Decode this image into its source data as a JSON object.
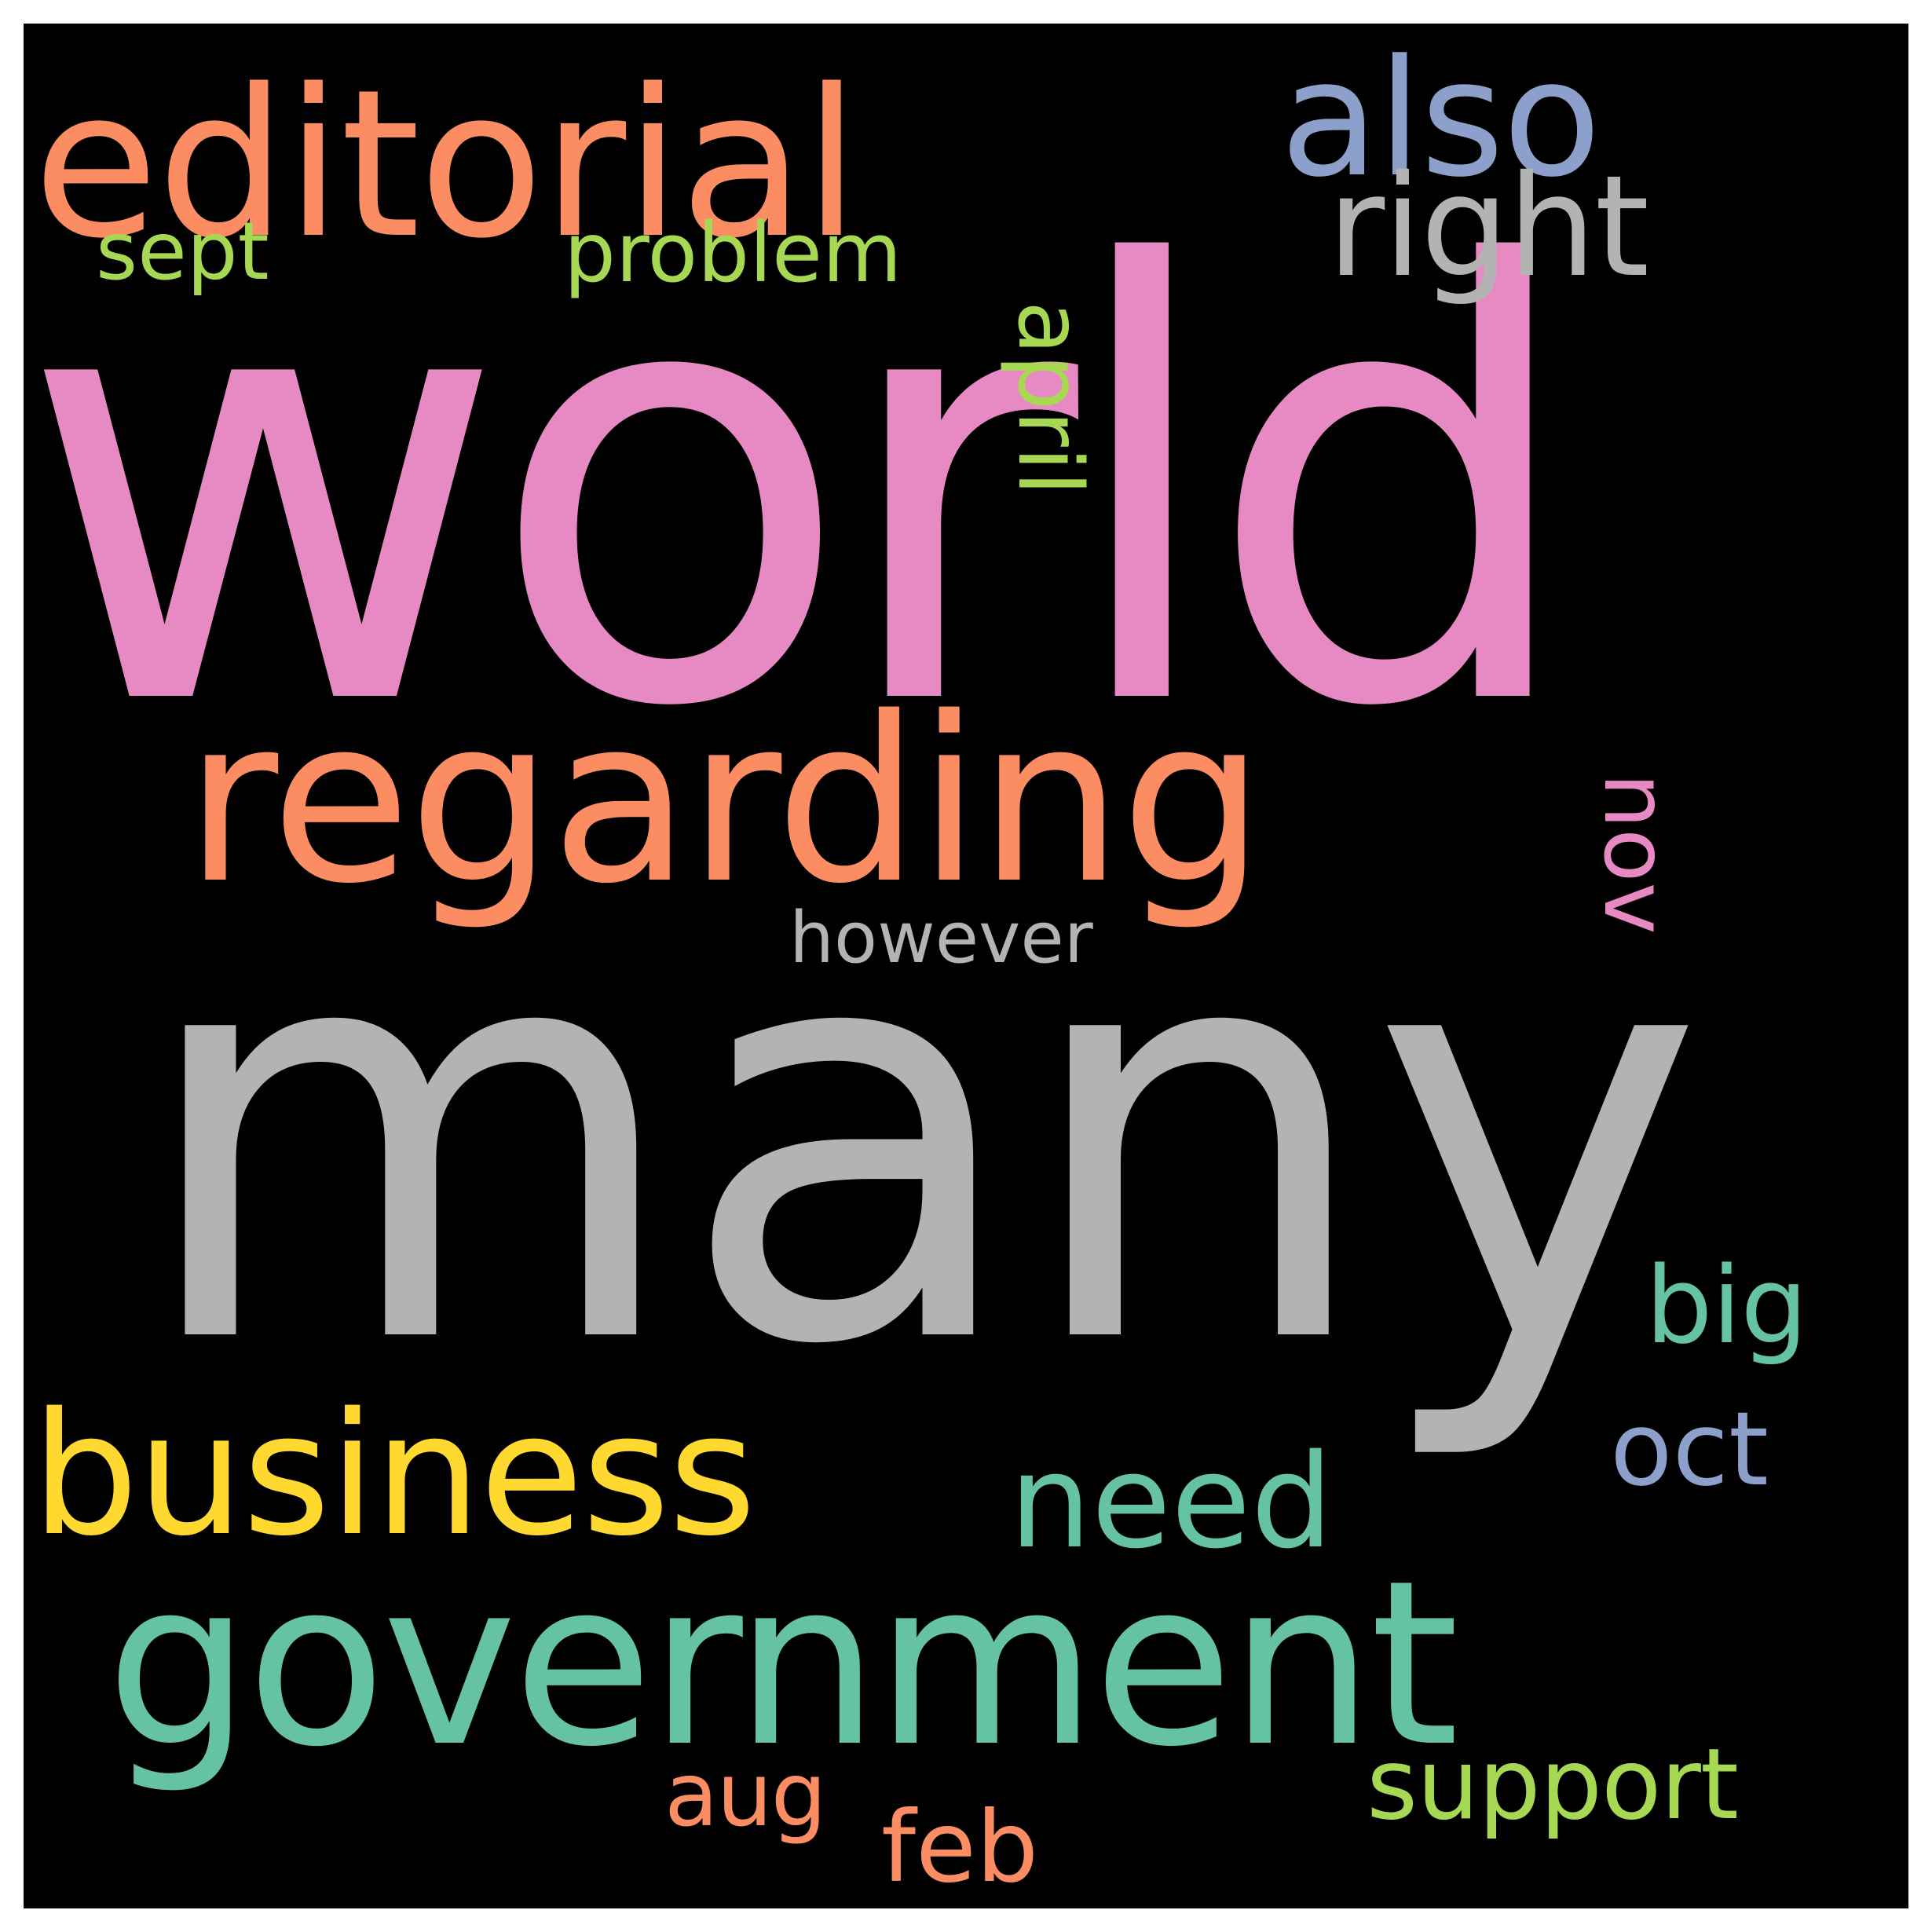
{
  "words": [
    {
      "text": "world",
      "color": "#e78ac3"
    },
    {
      "text": "many",
      "color": "#b3b3b3"
    },
    {
      "text": "regarding",
      "color": "#fc8d62"
    },
    {
      "text": "editorial",
      "color": "#fc8d62"
    },
    {
      "text": "government",
      "color": "#66c2a5"
    },
    {
      "text": "business",
      "color": "#ffd92f"
    },
    {
      "text": "also",
      "color": "#8da0cb"
    },
    {
      "text": "right",
      "color": "#b3b3b3"
    },
    {
      "text": "april",
      "color": "#a6d854"
    },
    {
      "text": "nov",
      "color": "#e78ac3"
    },
    {
      "text": "need",
      "color": "#66c2a5"
    },
    {
      "text": "big",
      "color": "#66c2a5"
    },
    {
      "text": "oct",
      "color": "#8da0cb"
    },
    {
      "text": "support",
      "color": "#a6d854"
    },
    {
      "text": "feb",
      "color": "#fc8d62"
    },
    {
      "text": "aug",
      "color": "#fc8d62"
    },
    {
      "text": "sept",
      "color": "#a6d854"
    },
    {
      "text": "problem",
      "color": "#a6d854"
    },
    {
      "text": "however",
      "color": "#b3b3b3"
    }
  ]
}
